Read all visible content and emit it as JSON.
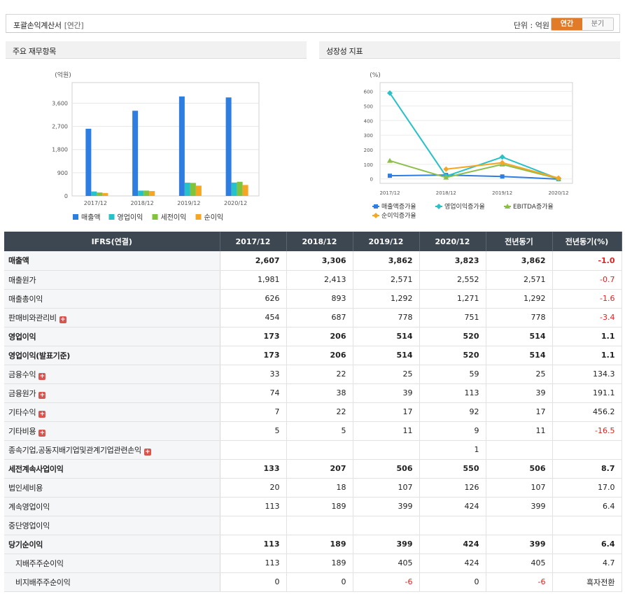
{
  "header": {
    "title": "포괄손익계산서",
    "subtitle": "[연간]",
    "unit_label": "단위 : 억원",
    "toggle": [
      "연간",
      "분기"
    ],
    "active": "연간"
  },
  "left_panel": {
    "title": "주요 재무항목"
  },
  "right_panel": {
    "title": "성장성 지표"
  },
  "chart_data": [
    {
      "type": "bar",
      "ylabel": "(억원)",
      "categories": [
        "2017/12",
        "2018/12",
        "2019/12",
        "2020/12"
      ],
      "yticks": [
        "0",
        "900",
        "1,800",
        "2,700",
        "3,600"
      ],
      "ylim": [
        0,
        4400
      ],
      "grid": true,
      "legend_placement": "bottom",
      "series": [
        {
          "name": "매출액",
          "color": "#2e7de0",
          "values": [
            2607,
            3306,
            3862,
            3823
          ]
        },
        {
          "name": "영업이익",
          "color": "#26c1c9",
          "values": [
            173,
            206,
            514,
            520
          ]
        },
        {
          "name": "세전이익",
          "color": "#7fc43a",
          "values": [
            133,
            207,
            506,
            550
          ]
        },
        {
          "name": "순이익",
          "color": "#f5a623",
          "values": [
            113,
            189,
            399,
            424
          ]
        }
      ]
    },
    {
      "type": "line",
      "ylabel": "(%)",
      "categories": [
        "2017/12",
        "2018/12",
        "2019/12",
        "2020/12"
      ],
      "yticks": [
        "0",
        "100",
        "200",
        "300",
        "400",
        "500",
        "600"
      ],
      "ylim": [
        -30,
        660
      ],
      "grid": true,
      "legend_placement": "bottom",
      "series": [
        {
          "name": "매출액증가율",
          "color": "#2e7de0",
          "marker": "square",
          "values": [
            22,
            27,
            17,
            -1
          ]
        },
        {
          "name": "영업이익증가율",
          "color": "#26c1c9",
          "marker": "diamond",
          "values": [
            588,
            19,
            150,
            1
          ]
        },
        {
          "name": "EBITDA증가율",
          "color": "#8bbf4a",
          "marker": "triangle",
          "values": [
            125,
            10,
            100,
            2
          ]
        },
        {
          "name": "순이익증가율",
          "color": "#f5a623",
          "marker": "diamond",
          "values": [
            null,
            67,
            111,
            6
          ]
        }
      ]
    }
  ],
  "table": {
    "columns": [
      "IFRS(연결)",
      "2017/12",
      "2018/12",
      "2019/12",
      "2020/12",
      "전년동기",
      "전년동기(%)"
    ],
    "rows": [
      {
        "label": "매출액",
        "bold": true,
        "plus": false,
        "indent": false,
        "values": [
          "2,607",
          "3,306",
          "3,862",
          "3,823",
          "3,862",
          "-1.0"
        ]
      },
      {
        "label": "매출원가",
        "bold": false,
        "plus": false,
        "indent": false,
        "values": [
          "1,981",
          "2,413",
          "2,571",
          "2,552",
          "2,571",
          "-0.7"
        ]
      },
      {
        "label": "매출총이익",
        "bold": false,
        "plus": false,
        "indent": false,
        "values": [
          "626",
          "893",
          "1,292",
          "1,271",
          "1,292",
          "-1.6"
        ]
      },
      {
        "label": "판매비와관리비",
        "bold": false,
        "plus": true,
        "indent": false,
        "values": [
          "454",
          "687",
          "778",
          "751",
          "778",
          "-3.4"
        ]
      },
      {
        "label": "영업이익",
        "bold": true,
        "plus": false,
        "indent": false,
        "values": [
          "173",
          "206",
          "514",
          "520",
          "514",
          "1.1"
        ]
      },
      {
        "label": "영업이익(발표기준)",
        "bold": true,
        "plus": false,
        "indent": false,
        "values": [
          "173",
          "206",
          "514",
          "520",
          "514",
          "1.1"
        ]
      },
      {
        "label": "금융수익",
        "bold": false,
        "plus": true,
        "indent": false,
        "values": [
          "33",
          "22",
          "25",
          "59",
          "25",
          "134.3"
        ]
      },
      {
        "label": "금융원가",
        "bold": false,
        "plus": true,
        "indent": false,
        "values": [
          "74",
          "38",
          "39",
          "113",
          "39",
          "191.1"
        ]
      },
      {
        "label": "기타수익",
        "bold": false,
        "plus": true,
        "indent": false,
        "values": [
          "7",
          "22",
          "17",
          "92",
          "17",
          "456.2"
        ]
      },
      {
        "label": "기타비용",
        "bold": false,
        "plus": true,
        "indent": false,
        "values": [
          "5",
          "5",
          "11",
          "9",
          "11",
          "-16.5"
        ]
      },
      {
        "label": "종속기업,공동지배기업및관계기업관련손익",
        "bold": false,
        "plus": true,
        "indent": false,
        "values": [
          "",
          "",
          "",
          "1",
          "",
          ""
        ]
      },
      {
        "label": "세전계속사업이익",
        "bold": true,
        "plus": false,
        "indent": false,
        "values": [
          "133",
          "207",
          "506",
          "550",
          "506",
          "8.7"
        ]
      },
      {
        "label": "법인세비용",
        "bold": false,
        "plus": false,
        "indent": false,
        "values": [
          "20",
          "18",
          "107",
          "126",
          "107",
          "17.0"
        ]
      },
      {
        "label": "계속영업이익",
        "bold": false,
        "plus": false,
        "indent": false,
        "values": [
          "113",
          "189",
          "399",
          "424",
          "399",
          "6.4"
        ]
      },
      {
        "label": "중단영업이익",
        "bold": false,
        "plus": false,
        "indent": false,
        "values": [
          "",
          "",
          "",
          "",
          "",
          ""
        ]
      },
      {
        "label": "당기순이익",
        "bold": true,
        "plus": false,
        "indent": false,
        "values": [
          "113",
          "189",
          "399",
          "424",
          "399",
          "6.4"
        ]
      },
      {
        "label": "지배주주순이익",
        "bold": false,
        "plus": false,
        "indent": true,
        "values": [
          "113",
          "189",
          "405",
          "424",
          "405",
          "4.7"
        ]
      },
      {
        "label": "비지배주주순이익",
        "bold": false,
        "plus": false,
        "indent": true,
        "values": [
          "0",
          "0",
          "-6",
          "0",
          "-6",
          "흑자전환"
        ]
      }
    ]
  },
  "colors": {
    "negative": "#e02020",
    "header_bg": "#3c4752",
    "toggle_active": "#e07b2a"
  }
}
